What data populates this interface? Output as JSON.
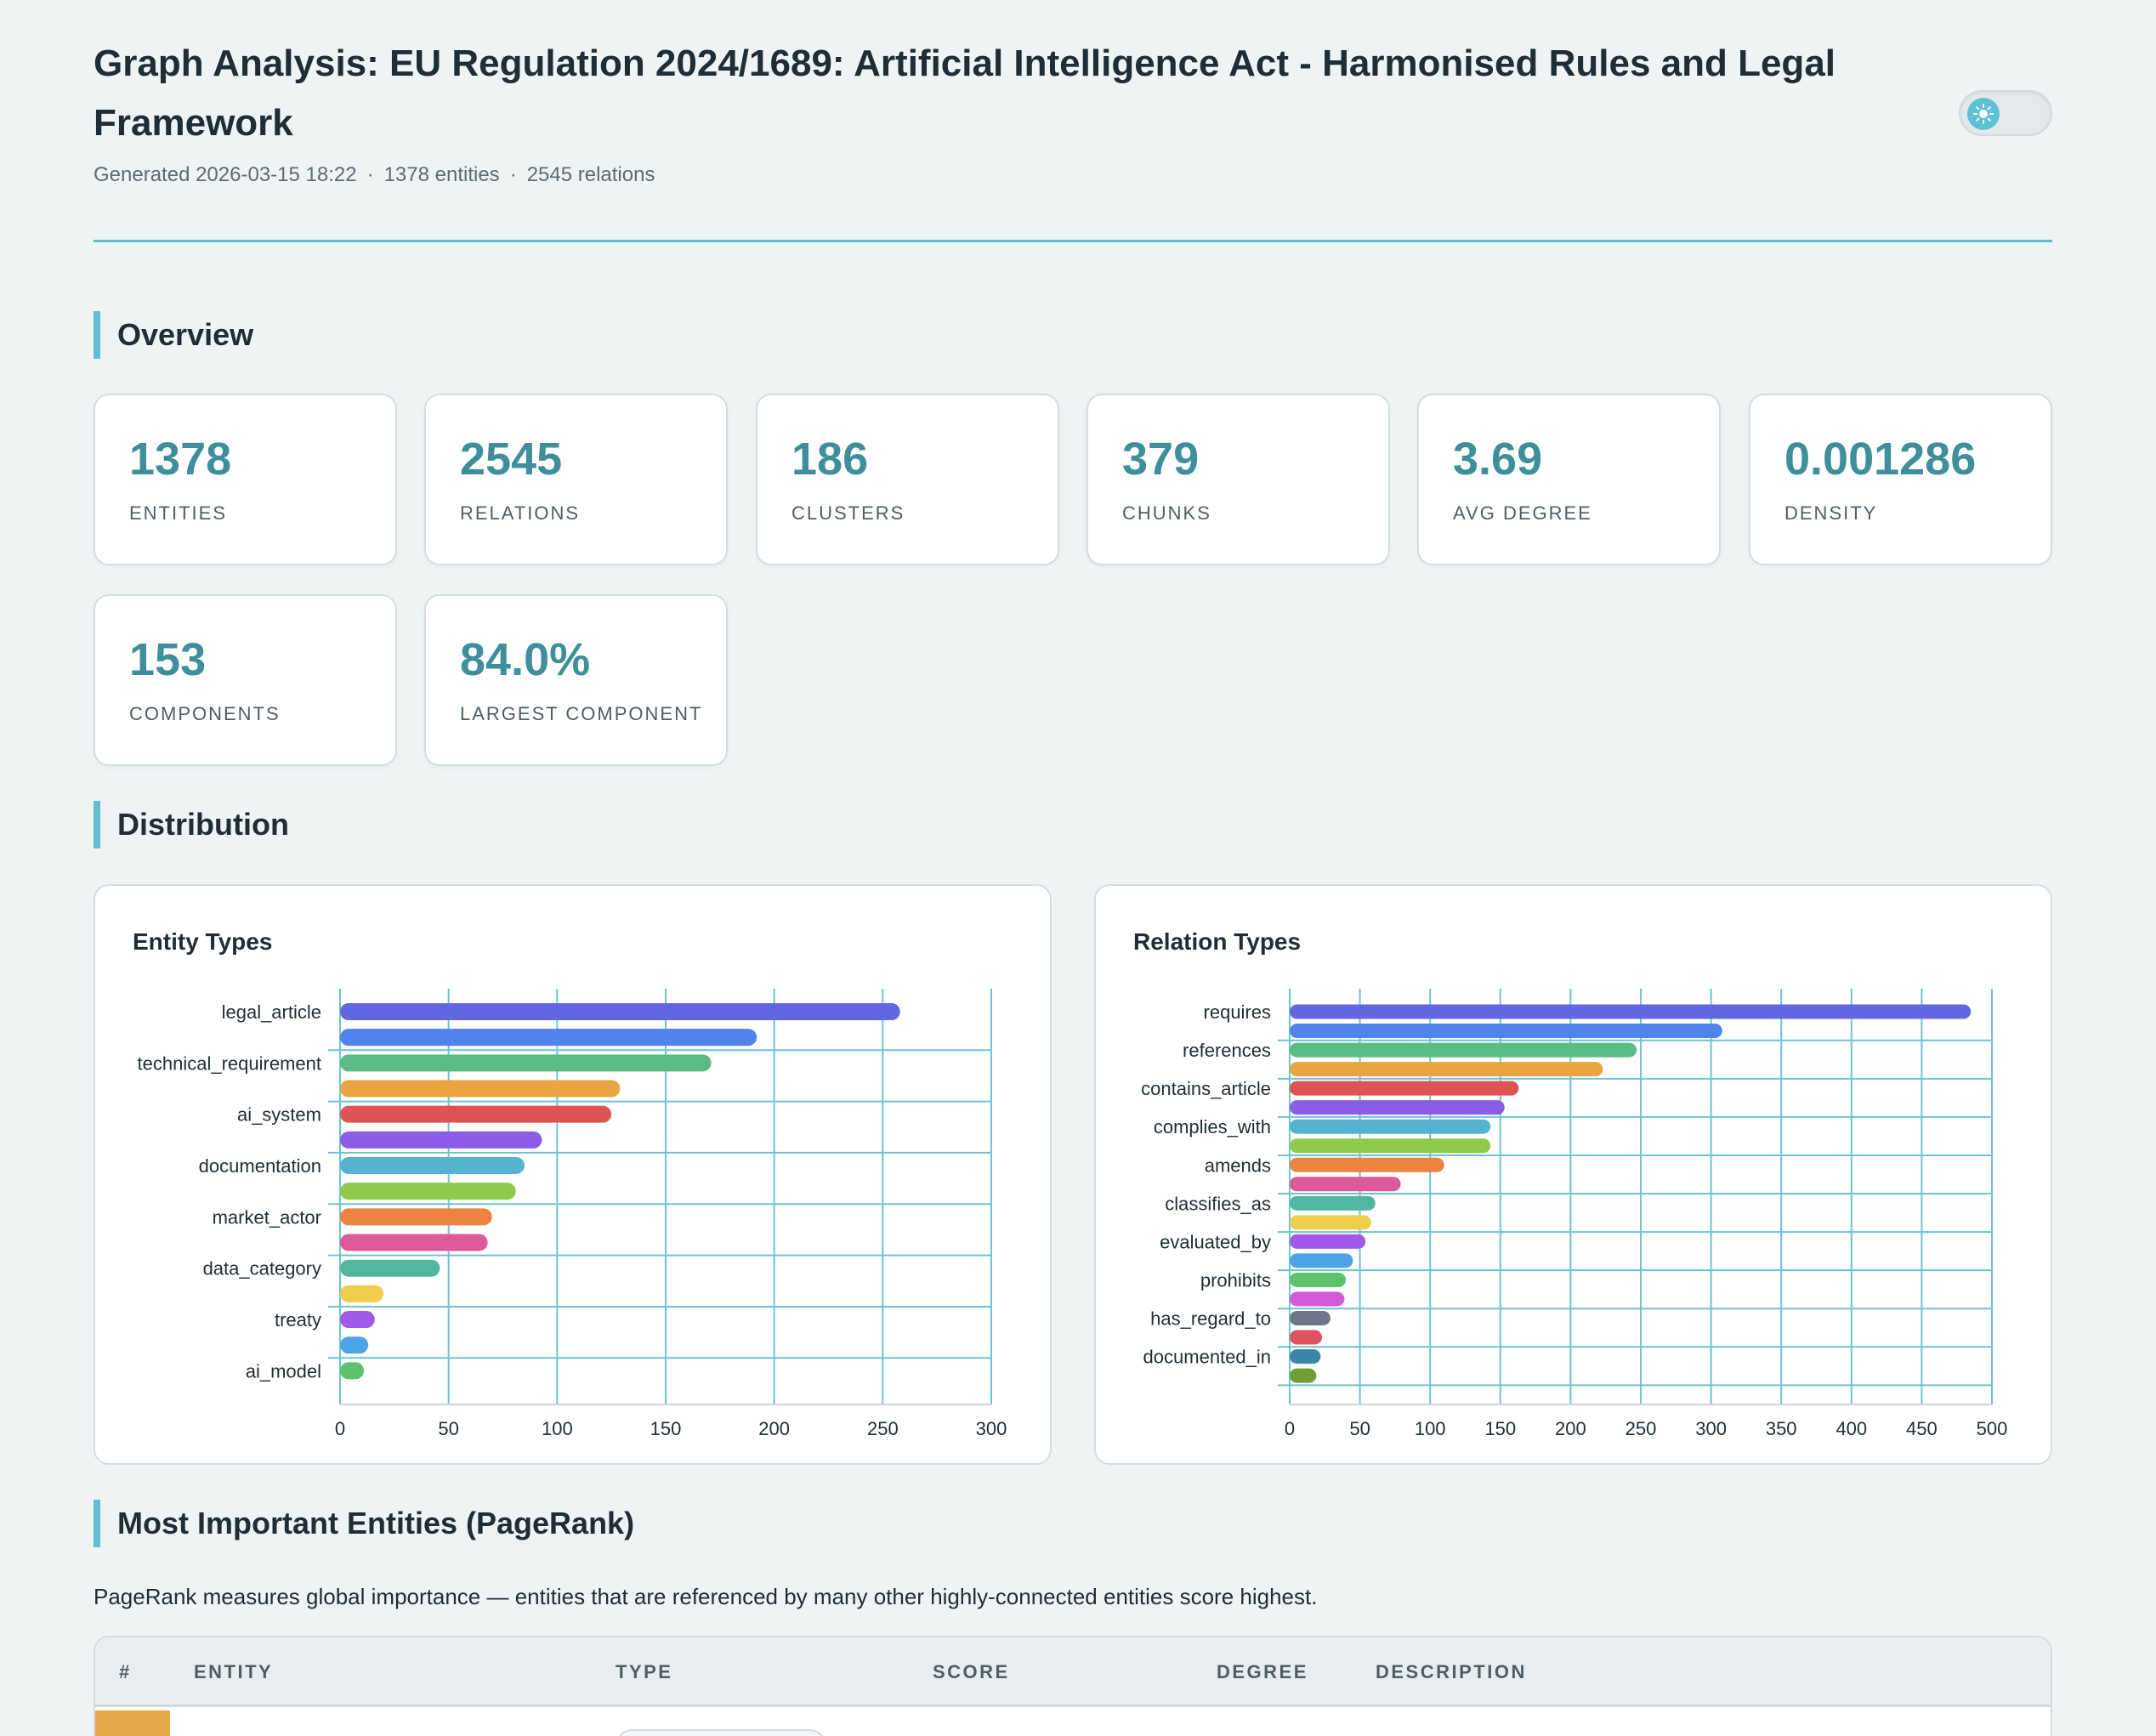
{
  "header": {
    "title": "Graph Analysis: EU Regulation 2024/1689: Artificial Intelligence Act - Harmonised Rules and Legal Framework",
    "generated": "Generated 2026-03-15 18:22",
    "entities_meta": "1378 entities",
    "relations_meta": "2545 relations",
    "separator": "·"
  },
  "sections": {
    "overview": "Overview",
    "distribution": "Distribution",
    "pagerank": "Most Important Entities (PageRank)"
  },
  "stats": [
    {
      "value": "1378",
      "label": "ENTITIES"
    },
    {
      "value": "2545",
      "label": "RELATIONS"
    },
    {
      "value": "186",
      "label": "CLUSTERS"
    },
    {
      "value": "379",
      "label": "CHUNKS"
    },
    {
      "value": "3.69",
      "label": "AVG DEGREE"
    },
    {
      "value": "0.001286",
      "label": "DENSITY"
    },
    {
      "value": "153",
      "label": "COMPONENTS"
    },
    {
      "value": "84.0%",
      "label": "LARGEST COMPONENT"
    }
  ],
  "chart_data": [
    {
      "type": "bar",
      "orientation": "horizontal",
      "title": "Entity Types",
      "categories": [
        "legal_article",
        "",
        "technical_requirement",
        "",
        "ai_system",
        "",
        "documentation",
        "",
        "market_actor",
        "",
        "data_category",
        "",
        "treaty",
        "",
        "ai_model"
      ],
      "values": [
        258,
        192,
        171,
        129,
        125,
        93,
        85,
        81,
        70,
        68,
        46,
        20,
        16,
        13,
        11
      ],
      "colors": [
        "#6366e1",
        "#5083eb",
        "#5bbb85",
        "#eaa442",
        "#de5454",
        "#8a5ce8",
        "#55b3cf",
        "#8fca4a",
        "#ec8342",
        "#dc5a9a",
        "#52b6a2",
        "#f1cd4d",
        "#a15ae8",
        "#4da3e6",
        "#5cc26c"
      ],
      "xlim": [
        0,
        300
      ],
      "xticks": [
        0,
        50,
        100,
        150,
        200,
        250,
        300
      ],
      "grid": true
    },
    {
      "type": "bar",
      "orientation": "horizontal",
      "title": "Relation Types",
      "categories": [
        "requires",
        "",
        "references",
        "",
        "contains_article",
        "",
        "complies_with",
        "",
        "amends",
        "",
        "classifies_as",
        "",
        "evaluated_by",
        "",
        "prohibits",
        "",
        "has_regard_to",
        "",
        "documented_in",
        ""
      ],
      "values": [
        485,
        308,
        247,
        223,
        163,
        153,
        143,
        143,
        110,
        79,
        61,
        58,
        54,
        45,
        40,
        39,
        29,
        23,
        22,
        19
      ],
      "colors": [
        "#6366e1",
        "#5083eb",
        "#5bbb85",
        "#eaa442",
        "#de5454",
        "#8a5ce8",
        "#55b3cf",
        "#8fca4a",
        "#ec8342",
        "#dc5a9a",
        "#52b6a2",
        "#f1cd4d",
        "#a15ae8",
        "#4da3e6",
        "#5cc26c",
        "#d35ad8",
        "#6f7688",
        "#e0525f",
        "#3a86a6",
        "#6e9e34"
      ],
      "xlim": [
        0,
        500
      ],
      "xticks": [
        0,
        50,
        100,
        150,
        200,
        250,
        300,
        350,
        400,
        450,
        500
      ],
      "grid": true
    }
  ],
  "pagerank": {
    "description": "PageRank measures global importance — entities that are referenced by many other highly-connected entities score highest.",
    "columns": [
      "#",
      "ENTITY",
      "TYPE",
      "SCORE",
      "DEGREE",
      "DESCRIPTION"
    ],
    "first_row_color": "#e9a845"
  },
  "colors": {
    "accent": "#5fbfd1",
    "stat_value": "#3e8e9c",
    "background": "#eff3f4"
  },
  "icons": {
    "theme_toggle": "sun-icon"
  }
}
